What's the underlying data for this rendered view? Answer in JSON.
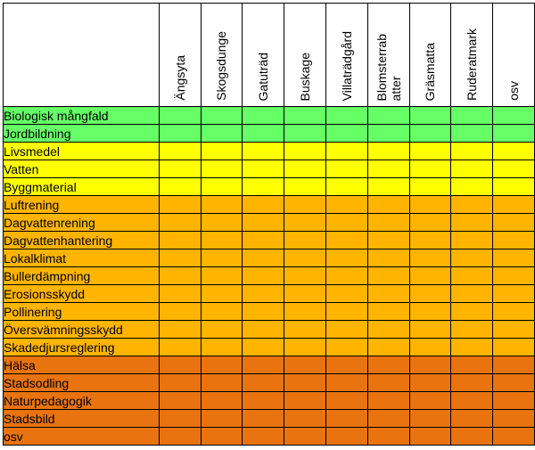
{
  "columns": [
    "Ängsyta",
    "Skogsdunge",
    "Gatuträd",
    "Buskage",
    "Villaträdgård",
    "Blomsterrab\natter",
    "Gräsmatta",
    "Ruderatmark",
    "osv"
  ],
  "rows": [
    {
      "label": "Biologisk mångfald",
      "color": "#66ff66"
    },
    {
      "label": "Jordbildning",
      "color": "#66ff66"
    },
    {
      "label": "Livsmedel",
      "color": "#ffff00"
    },
    {
      "label": "Vatten",
      "color": "#ffff00"
    },
    {
      "label": "Byggmaterial",
      "color": "#ffff00"
    },
    {
      "label": "Luftrening",
      "color": "#ffb400"
    },
    {
      "label": "Dagvattenrening",
      "color": "#ffb400"
    },
    {
      "label": "Dagvattenhantering",
      "color": "#ffb400"
    },
    {
      "label": "Lokalklimat",
      "color": "#ffb400"
    },
    {
      "label": "Bullerdämpning",
      "color": "#ffb400"
    },
    {
      "label": "Erosionsskydd",
      "color": "#ffb400"
    },
    {
      "label": "Pollinering",
      "color": "#ffb400"
    },
    {
      "label": "Översvämningsskydd",
      "color": "#ffb400"
    },
    {
      "label": "Skadedjursreglering",
      "color": "#ffb400"
    },
    {
      "label": "Hälsa",
      "color": "#e8730f"
    },
    {
      "label": "Stadsodling",
      "color": "#e8730f"
    },
    {
      "label": "Naturpedagogik",
      "color": "#e8730f"
    },
    {
      "label": "Stadsbild",
      "color": "#e8730f"
    },
    {
      "label": "osv",
      "color": "#e8730f"
    }
  ]
}
